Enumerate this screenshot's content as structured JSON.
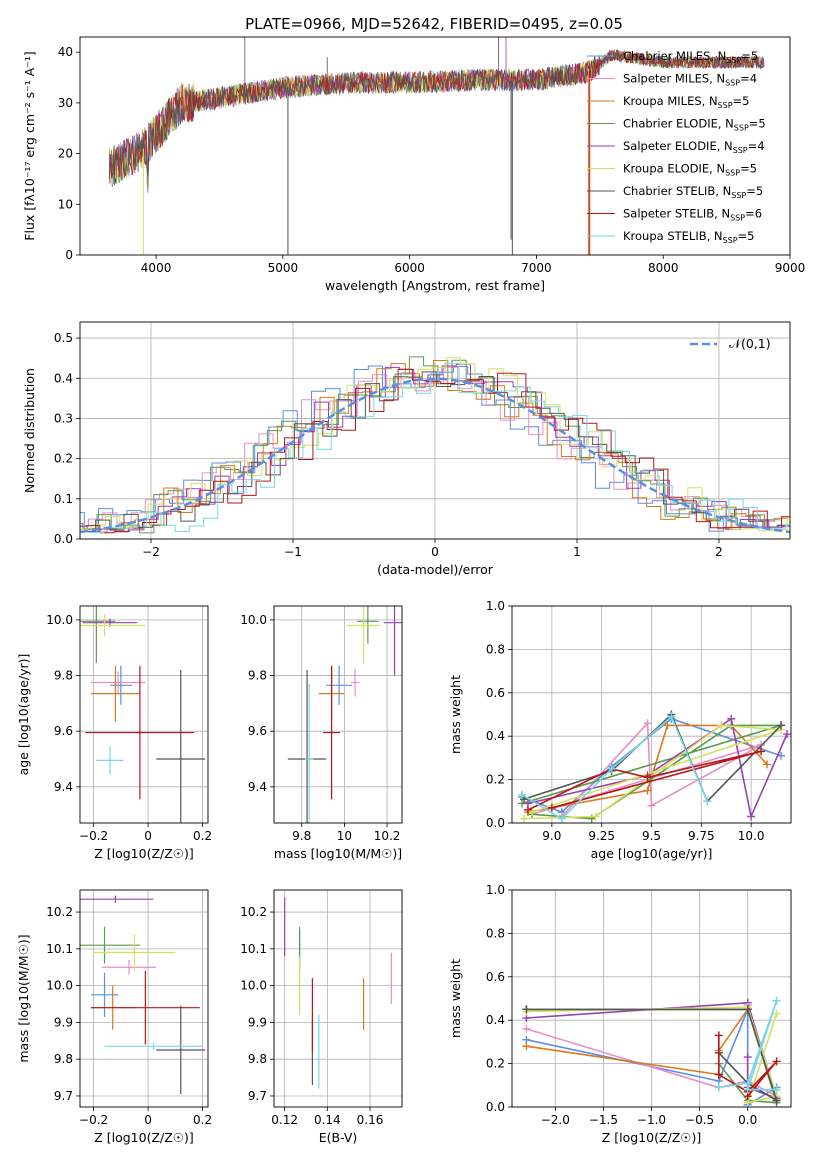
{
  "figure": {
    "title": "PLATE=0966, MJD=52642, FIBERID=0495, z=0.05"
  },
  "legend": [
    {
      "name": "Chabrier MILES",
      "nssp": "5"
    },
    {
      "name": "Salpeter MILES",
      "nssp": "4"
    },
    {
      "name": "Kroupa MILES",
      "nssp": "5"
    },
    {
      "name": "Chabrier ELODIE",
      "nssp": "5"
    },
    {
      "name": "Salpeter ELODIE",
      "nssp": "4"
    },
    {
      "name": "Kroupa ELODIE",
      "nssp": "5"
    },
    {
      "name": "Chabrier STELIB",
      "nssp": "5"
    },
    {
      "name": "Salpeter STELIB",
      "nssp": "6"
    },
    {
      "name": "Kroupa STELIB",
      "nssp": "5"
    }
  ],
  "colors": [
    "#5b8ee6",
    "#e88dc8",
    "#d97a1c",
    "#5b9a4e",
    "#9a3fb5",
    "#d6e060",
    "#555555",
    "#b81616",
    "#76d7e4"
  ],
  "chart_data": [
    {
      "id": "spectrum",
      "type": "line",
      "xlabel": "wavelength [Angstrom, rest frame]",
      "ylabel": "Flux [fλ10⁻¹⁷ erg cm⁻² s⁻¹ A⁻¹]",
      "xlim": [
        3400,
        9000
      ],
      "ylim": [
        0,
        43
      ],
      "xticks": [
        4000,
        5000,
        6000,
        7000,
        8000,
        9000
      ],
      "yticks": [
        0,
        10,
        20,
        30,
        40
      ],
      "grid": false,
      "data_range": [
        3630,
        8800
      ],
      "notes": "continuum ~18 at 3650, ~30 at 4200, ~34 at 5500, ~35 at 7000, ~40 at 7500, ~38 at 8800"
    },
    {
      "id": "residuals",
      "type": "area",
      "xlabel": "(data-model)/error",
      "ylabel": "Normed distribution",
      "xlim": [
        -2.5,
        2.5
      ],
      "ylim": [
        0,
        0.54
      ],
      "xticks": [
        -2,
        -1,
        0,
        1,
        2
      ],
      "yticks": [
        0.0,
        0.1,
        0.2,
        0.3,
        0.4,
        0.5
      ],
      "grid": true,
      "reference_label": "𝒩(0,1)",
      "legend_position": "top-right"
    },
    {
      "id": "age_vs_Z",
      "type": "scatter",
      "xlabel": "Z [log10(Z/Z☉)]",
      "ylabel": "age  [log10(age/yr)]",
      "xlim": [
        -0.25,
        0.22
      ],
      "ylim": [
        9.27,
        10.05
      ],
      "xticks": [
        -0.2,
        0.0,
        0.2
      ],
      "yticks": [
        9.4,
        9.6,
        9.8,
        10.0
      ],
      "grid": true,
      "points": [
        {
          "x": -0.1,
          "y": 9.765,
          "xerr": 0.04,
          "yerr": 0.07
        },
        {
          "x": -0.11,
          "y": 9.775,
          "xerr": 0.1,
          "yerr": 0.04
        },
        {
          "x": -0.12,
          "y": 9.735,
          "xerr": 0.09,
          "yerr": 0.1
        },
        {
          "x": -0.19,
          "y": 9.995,
          "xerr": 0.07,
          "yerr": 0.15
        },
        {
          "x": -0.14,
          "y": 9.99,
          "xerr": 0.1,
          "yerr": 0.015
        },
        {
          "x": -0.16,
          "y": 9.98,
          "xerr": 0.15,
          "yerr": 0.04
        },
        {
          "x": 0.12,
          "y": 9.5,
          "xerr": 0.09,
          "yerr": 0.32
        },
        {
          "x": -0.03,
          "y": 9.595,
          "xerr": 0.2,
          "yerr": 0.24
        },
        {
          "x": -0.14,
          "y": 9.495,
          "xerr": 0.05,
          "yerr": 0.05
        }
      ]
    },
    {
      "id": "age_vs_mass",
      "type": "scatter",
      "xlabel": "mass [log10(M/M☉)]",
      "ylabel": "",
      "xlim": [
        9.67,
        10.27
      ],
      "ylim": [
        9.27,
        10.05
      ],
      "xticks": [
        9.8,
        10.0,
        10.2
      ],
      "yticks": [
        9.4,
        9.6,
        9.8,
        10.0
      ],
      "grid": true,
      "points": [
        {
          "x": 9.975,
          "y": 9.765,
          "xerr": 0.06,
          "yerr": 0.07
        },
        {
          "x": 10.05,
          "y": 9.775,
          "xerr": 0.02,
          "yerr": 0.05
        },
        {
          "x": 9.94,
          "y": 9.735,
          "xerr": 0.06,
          "yerr": 0.1
        },
        {
          "x": 10.11,
          "y": 9.995,
          "xerr": 0.05,
          "yerr": 0.08
        },
        {
          "x": 10.235,
          "y": 9.99,
          "xerr": 0.05,
          "yerr": 0.19
        },
        {
          "x": 10.09,
          "y": 9.98,
          "xerr": 0.08,
          "yerr": 0.14
        },
        {
          "x": 9.825,
          "y": 9.5,
          "xerr": 0.09,
          "yerr": 0.32
        },
        {
          "x": 9.94,
          "y": 9.595,
          "xerr": 0.04,
          "yerr": 0.24
        },
        {
          "x": 9.835,
          "y": 9.5,
          "xerr": 0.02,
          "yerr": 0.27
        }
      ]
    },
    {
      "id": "massweight_vs_age",
      "type": "line",
      "xlabel": "age  [log10(age/yr)]",
      "ylabel": "mass weight",
      "xlim": [
        8.8,
        10.2
      ],
      "ylim": [
        0,
        1
      ],
      "xticks": [
        9.0,
        9.25,
        9.5,
        9.75,
        10.0
      ],
      "yticks": [
        0.0,
        0.2,
        0.4,
        0.6,
        0.8,
        1.0
      ],
      "grid": true,
      "series": [
        {
          "x": [
            8.85,
            9.05,
            9.3,
            9.6,
            10.15
          ],
          "y": [
            0.12,
            0.05,
            0.26,
            0.48,
            0.31
          ]
        },
        {
          "x": [
            9.05,
            9.48,
            9.5,
            10.05,
            8.9
          ],
          "y": [
            0.03,
            0.46,
            0.08,
            0.36,
            0.04
          ]
        },
        {
          "x": [
            8.88,
            9.48,
            9.58,
            9.9,
            10.08
          ],
          "y": [
            0.05,
            0.15,
            0.45,
            0.45,
            0.27
          ]
        },
        {
          "x": [
            8.9,
            9.2,
            9.9,
            10.15,
            8.85
          ],
          "y": [
            0.04,
            0.02,
            0.45,
            0.45,
            0.09
          ]
        },
        {
          "x": [
            8.88,
            9.48,
            9.9,
            10.0,
            10.18
          ],
          "y": [
            0.09,
            0.22,
            0.48,
            0.03,
            0.41
          ]
        },
        {
          "x": [
            8.86,
            9.22,
            9.85,
            10.15,
            8.9
          ],
          "y": [
            0.02,
            0.03,
            0.45,
            0.43,
            0.05
          ]
        },
        {
          "x": [
            8.86,
            9.3,
            9.6,
            9.78,
            10.15
          ],
          "y": [
            0.11,
            0.24,
            0.5,
            0.1,
            0.45
          ]
        },
        {
          "x": [
            8.88,
            9.3,
            9.48,
            10.05,
            9.0
          ],
          "y": [
            0.06,
            0.25,
            0.21,
            0.33,
            0.07
          ]
        },
        {
          "x": [
            8.85,
            9.05,
            9.3,
            9.6,
            9.78
          ],
          "y": [
            0.13,
            0.02,
            0.25,
            0.49,
            0.1
          ]
        }
      ]
    },
    {
      "id": "mass_vs_Z",
      "type": "scatter",
      "xlabel": "Z [log10(Z/Z☉)]",
      "ylabel": "mass [log10(M/M☉)]",
      "xlim": [
        -0.25,
        0.22
      ],
      "ylim": [
        9.67,
        10.26
      ],
      "xticks": [
        -0.2,
        0.0,
        0.2
      ],
      "yticks": [
        9.7,
        9.8,
        9.9,
        10.0,
        10.1,
        10.2
      ],
      "grid": true,
      "points": [
        {
          "x": -0.16,
          "y": 9.975,
          "xerr": 0.05,
          "yerr": 0.06
        },
        {
          "x": -0.07,
          "y": 10.05,
          "xerr": 0.1,
          "yerr": 0.02
        },
        {
          "x": -0.13,
          "y": 9.94,
          "xerr": 0.08,
          "yerr": 0.06
        },
        {
          "x": -0.16,
          "y": 10.11,
          "xerr": 0.13,
          "yerr": 0.05
        },
        {
          "x": -0.12,
          "y": 10.235,
          "xerr": 0.14,
          "yerr": 0.01
        },
        {
          "x": -0.05,
          "y": 10.09,
          "xerr": 0.15,
          "yerr": 0.05
        },
        {
          "x": 0.12,
          "y": 9.825,
          "xerr": 0.09,
          "yerr": 0.12
        },
        {
          "x": -0.01,
          "y": 9.94,
          "xerr": 0.2,
          "yerr": 0.1
        },
        {
          "x": 0.02,
          "y": 9.835,
          "xerr": 0.18,
          "yerr": 0.01
        }
      ]
    },
    {
      "id": "mass_vs_ebv",
      "type": "scatter",
      "xlabel": "E(B-V)",
      "ylabel": "",
      "xlim": [
        0.115,
        0.175
      ],
      "ylim": [
        9.67,
        10.26
      ],
      "xticks": [
        0.12,
        0.14,
        0.16
      ],
      "yticks": [
        9.7,
        9.8,
        9.9,
        10.0,
        10.1,
        10.2
      ],
      "grid": true,
      "points": [
        {
          "x": 0.127,
          "y": 10.1,
          "xerr": 0,
          "yerr": 0.06
        },
        {
          "x": 0.17,
          "y": 10.02,
          "xerr": 0,
          "yerr": 0.07
        },
        {
          "x": 0.157,
          "y": 9.95,
          "xerr": 0,
          "yerr": 0.07
        },
        {
          "x": 0.127,
          "y": 10.1,
          "xerr": 0,
          "yerr": 0.05
        },
        {
          "x": 0.12,
          "y": 10.16,
          "xerr": 0,
          "yerr": 0.08
        },
        {
          "x": 0.127,
          "y": 10.0,
          "xerr": 0,
          "yerr": 0.08
        },
        {
          "x": 0.133,
          "y": 9.82,
          "xerr": 0,
          "yerr": 0.09
        },
        {
          "x": 0.133,
          "y": 9.92,
          "xerr": 0,
          "yerr": 0.1
        },
        {
          "x": 0.136,
          "y": 9.82,
          "xerr": 0,
          "yerr": 0.1
        }
      ]
    },
    {
      "id": "massweight_vs_Z",
      "type": "line",
      "xlabel": "Z [log10(Z/Z☉)]",
      "ylabel": "mass weight",
      "xlim": [
        -2.45,
        0.45
      ],
      "ylim": [
        0,
        1
      ],
      "xticks": [
        -2.0,
        -1.5,
        -1.0,
        -0.5,
        0.0
      ],
      "yticks": [
        0.0,
        0.2,
        0.4,
        0.6,
        0.8,
        1.0
      ],
      "grid": true,
      "series": [
        {
          "x": [
            -2.3,
            -0.3,
            0.0,
            0.0,
            0.3
          ],
          "y": [
            0.31,
            0.12,
            0.45,
            0.01,
            0.09
          ]
        },
        {
          "x": [
            -2.3,
            -0.3,
            0.0,
            0.3,
            0.0
          ],
          "y": [
            0.36,
            0.09,
            0.12,
            0.05,
            0.47
          ]
        },
        {
          "x": [
            -2.3,
            -0.3,
            -0.3,
            0.0,
            0.3
          ],
          "y": [
            0.28,
            0.15,
            0.26,
            0.45,
            0.03
          ]
        },
        {
          "x": [
            -2.3,
            0.0,
            0.3,
            0.0,
            -0.3
          ],
          "y": [
            0.45,
            0.45,
            0.02,
            0.03,
            0.2
          ]
        },
        {
          "x": [
            -2.3,
            0.0,
            0.3,
            0.0,
            0.0
          ],
          "y": [
            0.41,
            0.48,
            0.04,
            0.09,
            0.23
          ]
        },
        {
          "x": [
            -2.3,
            0.0,
            0.3,
            0.0,
            0.3
          ],
          "y": [
            0.44,
            0.46,
            0.05,
            0.02,
            0.43
          ]
        },
        {
          "x": [
            -2.3,
            0.0,
            0.3,
            0.0,
            -0.3
          ],
          "y": [
            0.45,
            0.45,
            0.03,
            0.11,
            0.25
          ]
        },
        {
          "x": [
            -0.3,
            -0.3,
            0.0,
            0.3,
            0.0
          ],
          "y": [
            0.33,
            0.15,
            0.07,
            0.21,
            0.05
          ]
        },
        {
          "x": [
            -0.3,
            0.0,
            0.3,
            0.0,
            0.3
          ],
          "y": [
            0.09,
            0.11,
            0.49,
            0.08,
            0.08
          ]
        }
      ]
    }
  ]
}
